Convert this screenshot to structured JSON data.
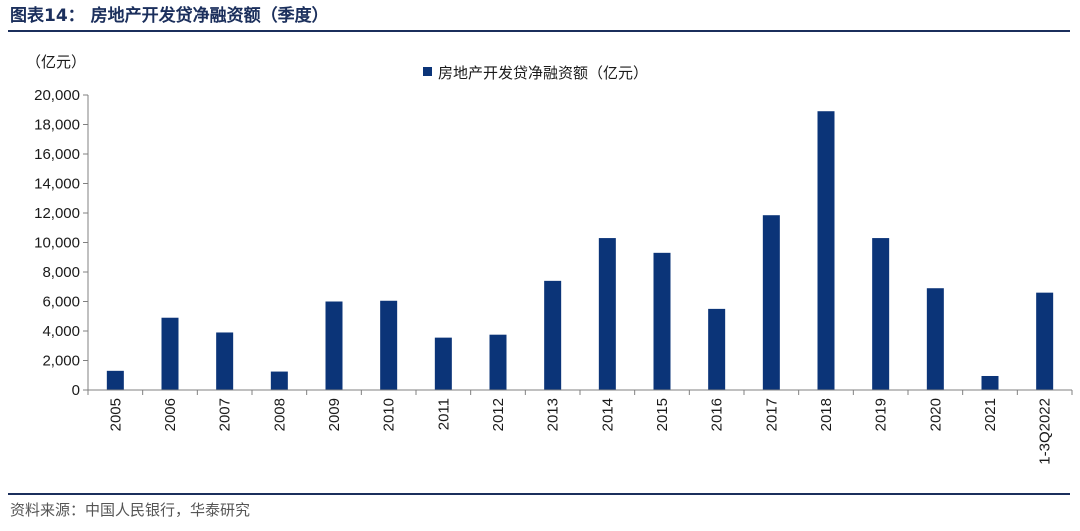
{
  "header": {
    "title": "图表14：  房地产开发贷净融资额（季度）"
  },
  "footer": {
    "source": "资料来源：中国人民银行，华泰研究"
  },
  "chart_data": {
    "type": "bar",
    "unit_label": "（亿元）",
    "legend": {
      "placement": "top-center"
    },
    "series": [
      {
        "name": "房地产开发贷净融资额（亿元）",
        "color": "#0b3478",
        "values": [
          1300,
          4900,
          3900,
          1250,
          6000,
          6050,
          3550,
          3750,
          7400,
          10300,
          9300,
          5500,
          11850,
          18900,
          10300,
          6900,
          950,
          6600
        ]
      }
    ],
    "categories": [
      "2005",
      "2006",
      "2007",
      "2008",
      "2009",
      "2010",
      "2011",
      "2012",
      "2013",
      "2014",
      "2015",
      "2016",
      "2017",
      "2018",
      "2019",
      "2020",
      "2021",
      "1-3Q2022"
    ],
    "ylim": [
      0,
      20000
    ],
    "yticks": [
      0,
      2000,
      4000,
      6000,
      8000,
      10000,
      12000,
      14000,
      16000,
      18000,
      20000
    ],
    "ytick_labels": [
      "0",
      "2,000",
      "4,000",
      "6,000",
      "8,000",
      "10,000",
      "12,000",
      "14,000",
      "16,000",
      "18,000",
      "20,000"
    ],
    "grid": false
  }
}
